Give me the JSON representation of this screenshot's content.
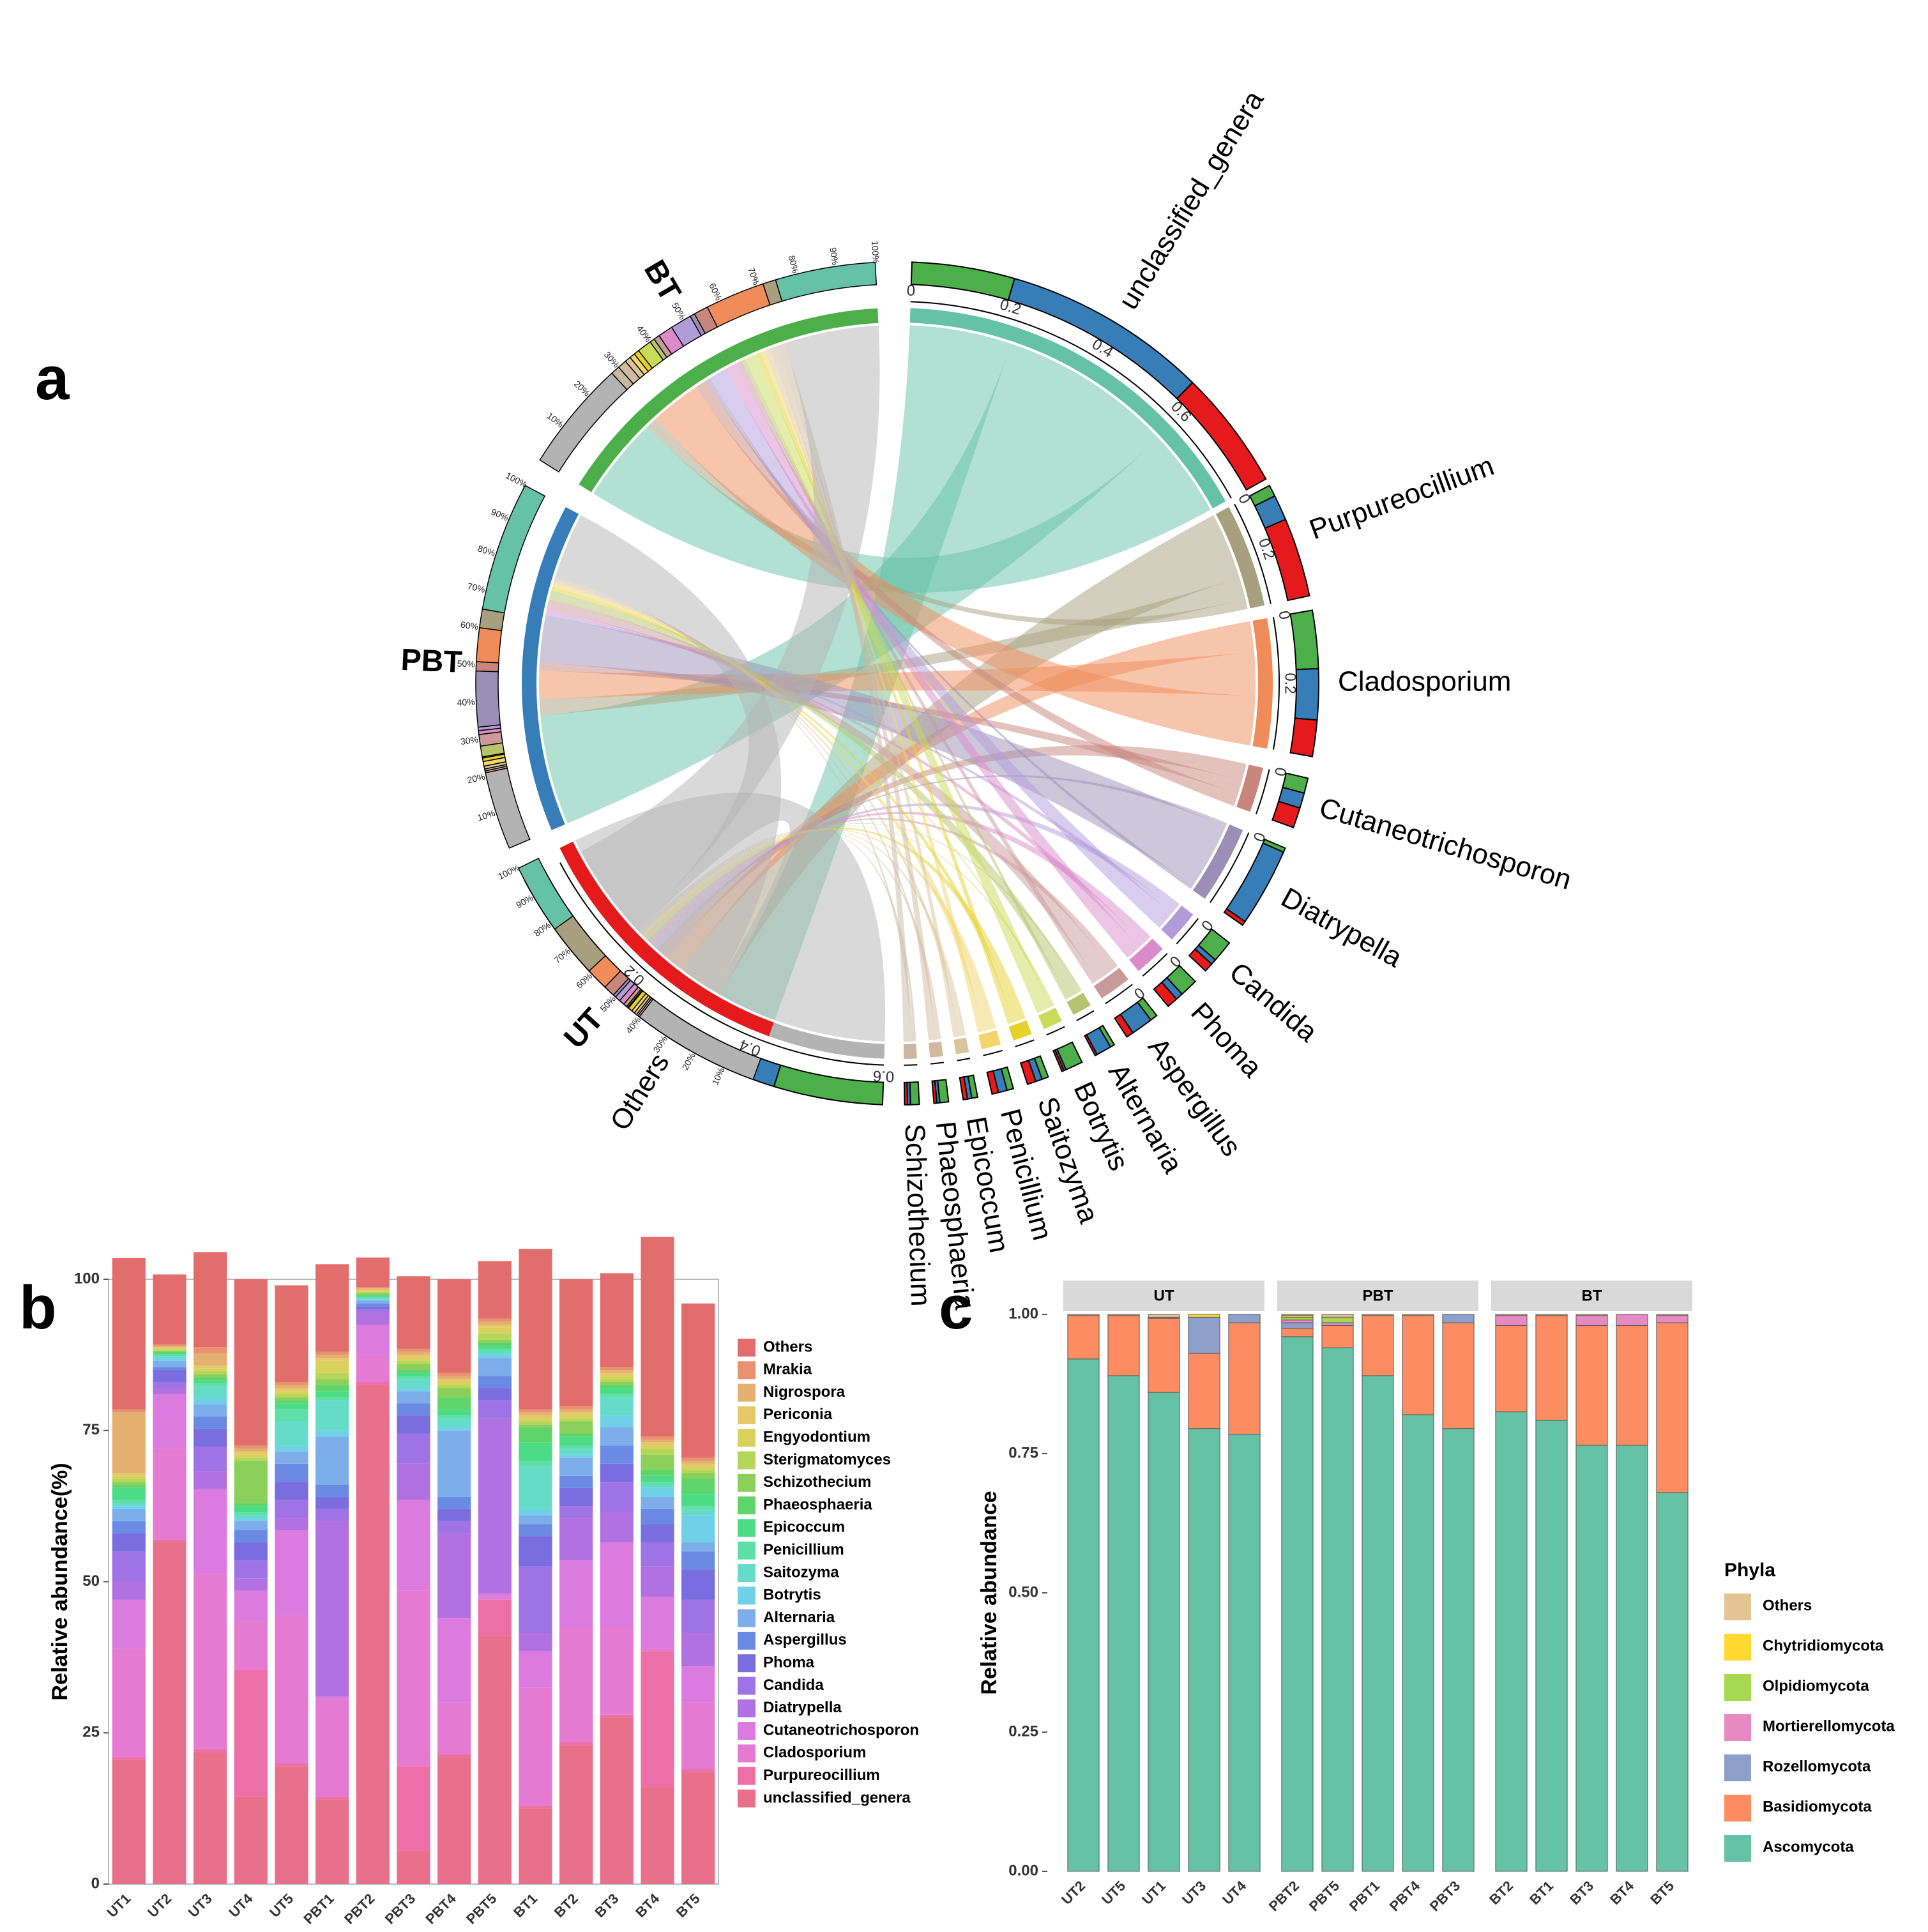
{
  "panel_labels": {
    "a": "a",
    "b": "b",
    "c": "c"
  },
  "chart_data": [
    {
      "type": "chord",
      "panel": "a",
      "groups": [
        {
          "name": "BT",
          "color": "#4daf4a"
        },
        {
          "name": "PBT",
          "color": "#377eb8"
        },
        {
          "name": "UT",
          "color": "#e41a1c"
        }
      ],
      "genera": [
        {
          "name": "unclassified_genera",
          "color": "#66c2a5",
          "total": 0.7,
          "ticks": [
            "0",
            "0.2",
            "0.4",
            "0.6"
          ],
          "shares": {
            "BT": 0.24,
            "PBT": 0.48,
            "UT": 0.28
          }
        },
        {
          "name": "Purpureocillium",
          "color": "#a89f7e",
          "total": 0.22,
          "ticks": [
            "0",
            "0.2"
          ],
          "shares": {
            "BT": 0.1,
            "PBT": 0.22,
            "UT": 0.68
          }
        },
        {
          "name": "Cladosporium",
          "color": "#f08c5a",
          "total": 0.25,
          "ticks": [
            "0",
            "0.2"
          ],
          "shares": {
            "BT": 0.4,
            "PBT": 0.35,
            "UT": 0.25
          }
        },
        {
          "name": "Cutaneotrichosporon",
          "color": "#c8867d",
          "total": 0.08,
          "ticks": [
            "0"
          ],
          "shares": {
            "BT": 0.3,
            "PBT": 0.3,
            "UT": 0.4
          }
        },
        {
          "name": "Diatrypella",
          "color": "#9b8fb8",
          "total": 0.16,
          "ticks": [
            "0"
          ],
          "shares": {
            "BT": 0.05,
            "PBT": 0.9,
            "UT": 0.05
          }
        },
        {
          "name": "Candida",
          "color": "#b19cd9",
          "total": 0.06,
          "ticks": [
            "0"
          ],
          "shares": {
            "BT": 0.6,
            "PBT": 0.15,
            "UT": 0.25
          }
        },
        {
          "name": "Phoma",
          "color": "#d98cc9",
          "total": 0.05,
          "ticks": [
            "0"
          ],
          "shares": {
            "BT": 0.5,
            "PBT": 0.2,
            "UT": 0.3
          }
        },
        {
          "name": "Aspergillus",
          "color": "#c99a9a",
          "total": 0.05,
          "ticks": [
            "0"
          ],
          "shares": {
            "BT": 0.2,
            "PBT": 0.6,
            "UT": 0.2
          }
        },
        {
          "name": "Alternaria",
          "color": "#b5c46d",
          "total": 0.04,
          "ticks": [],
          "shares": {
            "BT": 0.2,
            "PBT": 0.7,
            "UT": 0.1
          }
        },
        {
          "name": "Botrytis",
          "color": "#c9dc59",
          "total": 0.03,
          "ticks": [],
          "shares": {
            "BT": 0.8,
            "PBT": 0.1,
            "UT": 0.1
          }
        },
        {
          "name": "Saitozyma",
          "color": "#e6d12f",
          "total": 0.03,
          "ticks": [],
          "shares": {
            "BT": 0.3,
            "PBT": 0.3,
            "UT": 0.4
          }
        },
        {
          "name": "Penicillium",
          "color": "#f2d66b",
          "total": 0.03,
          "ticks": [],
          "shares": {
            "BT": 0.3,
            "PBT": 0.4,
            "UT": 0.3
          }
        },
        {
          "name": "Epicoccum",
          "color": "#d9c59c",
          "total": 0.025,
          "ticks": [],
          "shares": {
            "BT": 0.4,
            "PBT": 0.3,
            "UT": 0.3
          }
        },
        {
          "name": "Phaeosphaeria",
          "color": "#d2b99f",
          "total": 0.025,
          "ticks": [],
          "shares": {
            "BT": 0.6,
            "PBT": 0.2,
            "UT": 0.2
          }
        },
        {
          "name": "Schizothecium",
          "color": "#c8b8a2",
          "total": 0.025,
          "ticks": [],
          "shares": {
            "BT": 0.6,
            "PBT": 0.2,
            "UT": 0.2
          }
        },
        {
          "name": "Others",
          "color": "#b3b3b3",
          "total": 0.75,
          "ticks": [
            "0.6",
            "0.4",
            "0.2"
          ],
          "shares": {
            "BT": 0.25,
            "PBT": 0.27,
            "UT": 0.48
          }
        }
      ],
      "percent_ticks": [
        "10%",
        "20%",
        "30%",
        "40%",
        "50%",
        "60%",
        "70%",
        "80%",
        "90%",
        "100%"
      ]
    },
    {
      "type": "bar",
      "stacked": true,
      "panel": "b",
      "ylabel": "Relative abundance(%)",
      "ylim": [
        0,
        100
      ],
      "yticks": [
        0,
        25,
        50,
        75,
        100
      ],
      "categories": [
        "UT1",
        "UT2",
        "UT3",
        "UT4",
        "UT5",
        "PBT1",
        "PBT2",
        "PBT3",
        "PBT4",
        "PBT5",
        "BT1",
        "BT2",
        "BT3",
        "BT4",
        "BT5"
      ],
      "series": [
        {
          "name": "unclassified_genera",
          "color": "#e8708a",
          "values": [
            20.5,
            56.5,
            21.8,
            14.5,
            19.5,
            14.0,
            82.5,
            5.5,
            21.0,
            41.0,
            12.5,
            23.0,
            27.5,
            16.0,
            18.5
          ]
        },
        {
          "name": "Purpureocillium",
          "color": "#ec6fa7",
          "values": [
            0.5,
            0.5,
            0.5,
            21.0,
            0.5,
            0.5,
            0.5,
            14.0,
            0.5,
            6.0,
            0.5,
            0.5,
            0.5,
            22.5,
            0.5
          ]
        },
        {
          "name": "Cladosporium",
          "color": "#e47ad1",
          "values": [
            18.0,
            15.0,
            29.0,
            8.0,
            24.5,
            16.0,
            4.5,
            29.0,
            8.5,
            0.5,
            19.5,
            19.0,
            14.5,
            0.5,
            11.0
          ]
        },
        {
          "name": "Cutaneotrichosporon",
          "color": "#db7be0",
          "values": [
            8.0,
            9.0,
            14.0,
            5.0,
            14.0,
            0.5,
            5.0,
            15.0,
            14.0,
            0.5,
            6.0,
            11.0,
            14.0,
            8.5,
            6.0
          ]
        },
        {
          "name": "Diatrypella",
          "color": "#b271e0",
          "values": [
            3.0,
            1.0,
            3.0,
            2.0,
            2.0,
            29.0,
            2.0,
            6.0,
            14.0,
            29.0,
            3.0,
            7.0,
            5.0,
            5.0,
            5.5
          ]
        },
        {
          "name": "Candida",
          "color": "#9f72e6",
          "values": [
            5.0,
            1.0,
            4.0,
            3.0,
            3.0,
            2.0,
            0.5,
            5.0,
            2.0,
            3.0,
            11.0,
            2.0,
            5.0,
            4.0,
            5.5
          ]
        },
        {
          "name": "Phoma",
          "color": "#7a6de0",
          "values": [
            3.0,
            2.0,
            3.0,
            3.0,
            3.0,
            2.0,
            0.5,
            3.0,
            2.0,
            2.0,
            5.0,
            3.0,
            3.0,
            3.0,
            5.0
          ]
        },
        {
          "name": "Aspergillus",
          "color": "#6b8ae3",
          "values": [
            2.0,
            0.5,
            2.0,
            2.0,
            3.0,
            2.0,
            0.5,
            2.0,
            2.0,
            2.0,
            2.0,
            2.0,
            3.0,
            2.5,
            3.0
          ]
        },
        {
          "name": "Alternaria",
          "color": "#7daeea",
          "values": [
            2.0,
            1.0,
            2.0,
            1.5,
            2.0,
            8.0,
            0.5,
            2.0,
            11.0,
            3.0,
            1.5,
            3.0,
            3.0,
            2.0,
            1.5
          ]
        },
        {
          "name": "Botrytis",
          "color": "#6fd0e8",
          "values": [
            0.5,
            0.5,
            1.0,
            0.5,
            1.0,
            1.0,
            0.2,
            0.5,
            0.5,
            0.5,
            1.0,
            0.5,
            2.0,
            1.5,
            4.5
          ]
        },
        {
          "name": "Saitozyma",
          "color": "#65dcc8",
          "values": [
            0.5,
            0.3,
            2.0,
            0.5,
            4.0,
            5.0,
            0.2,
            1.5,
            1.5,
            0.5,
            7.0,
            1.0,
            3.0,
            0.5,
            1.0
          ]
        },
        {
          "name": "Penicillium",
          "color": "#60dea8",
          "values": [
            0.5,
            0.3,
            0.5,
            0.5,
            2.0,
            0.5,
            0.2,
            0.5,
            0.5,
            0.5,
            1.0,
            0.5,
            0.5,
            0.5,
            0.5
          ]
        },
        {
          "name": "Epicoccum",
          "color": "#4ddc86",
          "values": [
            2.0,
            0.2,
            0.5,
            1.0,
            1.0,
            1.0,
            0.2,
            0.5,
            1.0,
            0.5,
            3.0,
            1.5,
            1.0,
            1.0,
            2.0
          ]
        },
        {
          "name": "Phaeosphaeria",
          "color": "#5fd46a",
          "values": [
            0.5,
            0.2,
            0.5,
            0.5,
            0.5,
            1.0,
            0.2,
            0.5,
            2.0,
            0.5,
            2.5,
            0.5,
            0.5,
            1.0,
            2.5
          ]
        },
        {
          "name": "Schizothecium",
          "color": "#8bd05a",
          "values": [
            0.5,
            0.2,
            0.5,
            7.0,
            0.5,
            1.0,
            0.2,
            1.0,
            1.5,
            0.5,
            0.5,
            2.0,
            0.5,
            2.5,
            1.0
          ]
        },
        {
          "name": "Sterigmatomyces",
          "color": "#b6d65a",
          "values": [
            0.5,
            0.2,
            0.5,
            0.5,
            0.5,
            1.0,
            0.2,
            0.5,
            0.5,
            1.0,
            0.5,
            0.5,
            0.5,
            1.0,
            0.5
          ]
        },
        {
          "name": "Engyodontium",
          "color": "#d8d25d",
          "values": [
            0.5,
            0.2,
            0.5,
            0.5,
            0.5,
            2.0,
            0.2,
            0.5,
            0.5,
            1.0,
            0.5,
            0.5,
            0.5,
            0.5,
            0.5
          ]
        },
        {
          "name": "Periconia",
          "color": "#e6c86a",
          "values": [
            0.5,
            0.2,
            0.5,
            0.5,
            0.5,
            0.5,
            0.2,
            0.5,
            0.5,
            0.5,
            0.5,
            0.5,
            0.5,
            0.5,
            0.5
          ]
        },
        {
          "name": "Nigrospora",
          "color": "#e4b06f",
          "values": [
            10.0,
            0.2,
            2.0,
            0.5,
            0.5,
            0.5,
            0.2,
            0.5,
            0.5,
            0.5,
            0.5,
            0.5,
            0.5,
            0.5,
            0.5
          ]
        },
        {
          "name": "Mrakia",
          "color": "#e99270",
          "values": [
            0.5,
            0.2,
            1.0,
            0.5,
            0.5,
            0.5,
            0.2,
            0.5,
            0.5,
            0.5,
            0.5,
            0.5,
            0.5,
            0.5,
            0.5
          ]
        },
        {
          "name": "Others",
          "color": "#e26d6d",
          "values": [
            25.0,
            11.6,
            15.7,
            27.5,
            16.0,
            14.5,
            4.9,
            12.0,
            15.5,
            9.5,
            26.5,
            21.0,
            15.5,
            33.0,
            25.5
          ]
        }
      ],
      "legend_order": [
        "Others",
        "Mrakia",
        "Nigrospora",
        "Periconia",
        "Engyodontium",
        "Sterigmatomyces",
        "Schizothecium",
        "Phaeosphaeria",
        "Epicoccum",
        "Penicillium",
        "Saitozyma",
        "Botrytis",
        "Alternaria",
        "Aspergillus",
        "Phoma",
        "Candida",
        "Diatrypella",
        "Cutaneotrichosporon",
        "Cladosporium",
        "Purpureocillium",
        "unclassified_genera"
      ]
    },
    {
      "type": "bar",
      "stacked": true,
      "panel": "c",
      "ylabel": "Relative abundance",
      "ylim": [
        0,
        1
      ],
      "yticks": [
        "0.00",
        "0.25",
        "0.50",
        "0.75",
        "1.00"
      ],
      "facets": [
        {
          "name": "UT",
          "categories": [
            "UT2",
            "UT5",
            "UT1",
            "UT3",
            "UT4"
          ]
        },
        {
          "name": "PBT",
          "categories": [
            "PBT2",
            "PBT5",
            "PBT1",
            "PBT4",
            "PBT3"
          ]
        },
        {
          "name": "BT",
          "categories": [
            "BT2",
            "BT1",
            "BT3",
            "BT4",
            "BT5"
          ]
        }
      ],
      "series": [
        {
          "name": "Ascomycota",
          "color": "#66c2a5",
          "values": [
            0.92,
            0.89,
            0.86,
            0.795,
            0.785,
            0.96,
            0.94,
            0.89,
            0.82,
            0.795,
            0.825,
            0.81,
            0.765,
            0.765,
            0.68
          ]
        },
        {
          "name": "Basidiomycota",
          "color": "#fc8d62",
          "values": [
            0.078,
            0.108,
            0.133,
            0.135,
            0.2,
            0.015,
            0.04,
            0.108,
            0.178,
            0.19,
            0.155,
            0.188,
            0.215,
            0.215,
            0.305
          ]
        },
        {
          "name": "Rozellomycota",
          "color": "#8da0cb",
          "values": [
            0.0,
            0.0,
            0.002,
            0.065,
            0.015,
            0.01,
            0.0,
            0.0,
            0.0,
            0.015,
            0.0,
            0.0,
            0.0,
            0.0,
            0.0
          ]
        },
        {
          "name": "Mortierellomycota",
          "color": "#e78ac3",
          "values": [
            0.0,
            0.0,
            0.0,
            0.0,
            0.0,
            0.005,
            0.005,
            0.0,
            0.0,
            0.0,
            0.018,
            0.0,
            0.018,
            0.02,
            0.013
          ]
        },
        {
          "name": "Olpidiomycota",
          "color": "#a6d854",
          "values": [
            0.0,
            0.0,
            0.0,
            0.0,
            0.0,
            0.005,
            0.01,
            0.0,
            0.0,
            0.0,
            0.0,
            0.0,
            0.0,
            0.0,
            0.0
          ]
        },
        {
          "name": "Chytridiomycota",
          "color": "#ffd92f",
          "values": [
            0.0,
            0.0,
            0.0,
            0.005,
            0.0,
            0.003,
            0.0,
            0.0,
            0.0,
            0.0,
            0.0,
            0.0,
            0.0,
            0.0,
            0.0
          ]
        },
        {
          "name": "Others",
          "color": "#e5c494",
          "values": [
            0.002,
            0.002,
            0.005,
            0.0,
            0.0,
            0.002,
            0.005,
            0.002,
            0.002,
            0.0,
            0.002,
            0.002,
            0.002,
            0.0,
            0.002
          ]
        }
      ],
      "legend_title": "Phyla",
      "legend_order": [
        "Others",
        "Chytridiomycota",
        "Olpidiomycota",
        "Mortierellomycota",
        "Rozellomycota",
        "Basidiomycota",
        "Ascomycota"
      ]
    }
  ]
}
